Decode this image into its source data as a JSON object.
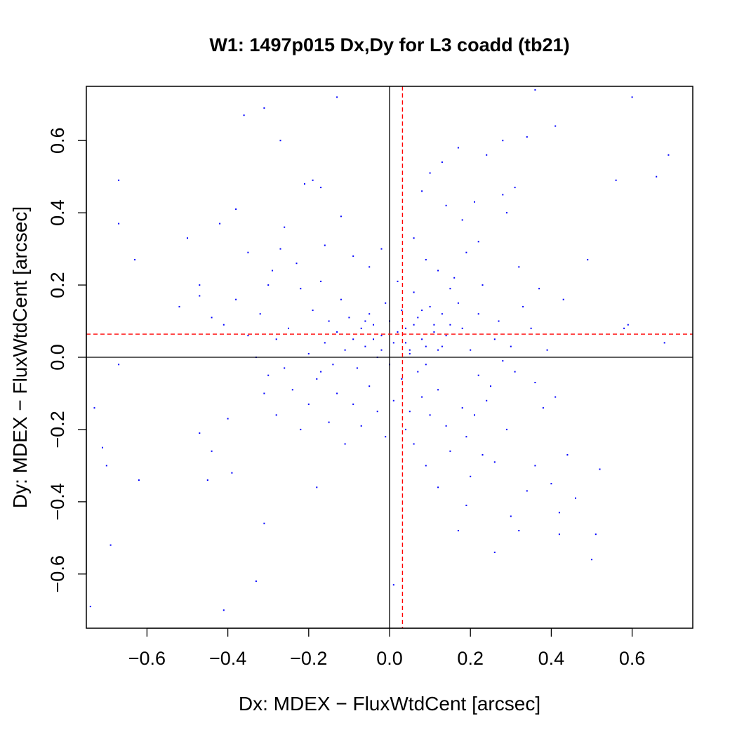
{
  "chart_data": {
    "type": "scatter",
    "title": "W1: 1497p015 Dx,Dy for L3 coadd (tb21)",
    "xlabel": "Dx: MDEX − FluxWtdCent [arcsec]",
    "ylabel": "Dy: MDEX − FluxWtdCent [arcsec]",
    "xlim": [
      -0.75,
      0.75
    ],
    "ylim": [
      -0.75,
      0.75
    ],
    "xticks": [
      "−0.6",
      "−0.4",
      "−0.2",
      "0.0",
      "0.2",
      "0.4",
      "0.6"
    ],
    "yticks": [
      "−0.6",
      "−0.4",
      "−0.2",
      "0.0",
      "0.2",
      "0.4",
      "0.6"
    ],
    "xtick_values": [
      -0.6,
      -0.4,
      -0.2,
      0.0,
      0.2,
      0.4,
      0.6
    ],
    "ytick_values": [
      -0.6,
      -0.4,
      -0.2,
      0.0,
      0.2,
      0.4,
      0.6
    ],
    "reference_lines": {
      "zero_x": 0.0,
      "zero_y": 0.0,
      "mean_x": 0.032,
      "mean_y": 0.064
    },
    "colors": {
      "points": "#0000ff",
      "mean_lines": "#ff0000",
      "zero_lines": "#000000"
    },
    "grid": false,
    "legend": "none",
    "points": [
      [
        -0.13,
        0.72
      ],
      [
        -0.36,
        0.67
      ],
      [
        -0.31,
        0.69
      ],
      [
        -0.27,
        0.6
      ],
      [
        -0.67,
        0.49
      ],
      [
        -0.67,
        0.37
      ],
      [
        -0.63,
        0.27
      ],
      [
        -0.5,
        0.33
      ],
      [
        -0.42,
        0.37
      ],
      [
        -0.38,
        0.41
      ],
      [
        -0.21,
        0.48
      ],
      [
        -0.19,
        0.49
      ],
      [
        -0.17,
        0.47
      ],
      [
        -0.12,
        0.39
      ],
      [
        -0.35,
        0.29
      ],
      [
        -0.3,
        0.2
      ],
      [
        -0.26,
        0.36
      ],
      [
        -0.27,
        0.3
      ],
      [
        -0.47,
        0.2
      ],
      [
        -0.47,
        0.17
      ],
      [
        -0.52,
        0.14
      ],
      [
        -0.41,
        0.09
      ],
      [
        -0.44,
        0.11
      ],
      [
        -0.67,
        -0.02
      ],
      [
        -0.73,
        -0.14
      ],
      [
        -0.71,
        -0.25
      ],
      [
        -0.7,
        -0.3
      ],
      [
        -0.62,
        -0.34
      ],
      [
        -0.69,
        -0.52
      ],
      [
        -0.74,
        -0.69
      ],
      [
        -0.47,
        -0.21
      ],
      [
        -0.44,
        -0.26
      ],
      [
        -0.4,
        -0.17
      ],
      [
        -0.39,
        -0.32
      ],
      [
        -0.45,
        -0.34
      ],
      [
        -0.31,
        -0.46
      ],
      [
        -0.33,
        -0.62
      ],
      [
        -0.41,
        -0.7
      ],
      [
        -0.18,
        -0.36
      ],
      [
        0.01,
        -0.63
      ],
      [
        0.24,
        0.56
      ],
      [
        0.28,
        0.6
      ],
      [
        0.31,
        0.47
      ],
      [
        0.34,
        0.61
      ],
      [
        0.36,
        0.74
      ],
      [
        0.41,
        0.64
      ],
      [
        0.6,
        0.72
      ],
      [
        0.69,
        0.56
      ],
      [
        0.56,
        0.49
      ],
      [
        0.66,
        0.5
      ],
      [
        0.17,
        0.58
      ],
      [
        0.13,
        0.54
      ],
      [
        0.1,
        0.51
      ],
      [
        0.08,
        0.46
      ],
      [
        0.21,
        0.43
      ],
      [
        0.28,
        0.45
      ],
      [
        0.29,
        0.4
      ],
      [
        0.18,
        0.38
      ],
      [
        0.14,
        0.42
      ],
      [
        0.22,
        0.32
      ],
      [
        0.32,
        0.25
      ],
      [
        0.37,
        0.19
      ],
      [
        0.43,
        0.16
      ],
      [
        0.49,
        0.27
      ],
      [
        0.59,
        0.09
      ],
      [
        0.68,
        0.04
      ],
      [
        0.58,
        0.08
      ],
      [
        0.39,
        0.02
      ],
      [
        0.31,
        -0.04
      ],
      [
        0.36,
        -0.07
      ],
      [
        0.41,
        -0.11
      ],
      [
        0.44,
        -0.27
      ],
      [
        0.46,
        -0.39
      ],
      [
        0.42,
        -0.43
      ],
      [
        0.4,
        -0.35
      ],
      [
        0.36,
        -0.3
      ],
      [
        0.34,
        -0.37
      ],
      [
        0.32,
        -0.48
      ],
      [
        0.3,
        -0.44
      ],
      [
        0.26,
        -0.29
      ],
      [
        0.26,
        -0.54
      ],
      [
        0.19,
        -0.41
      ],
      [
        0.17,
        -0.48
      ],
      [
        0.51,
        -0.49
      ],
      [
        0.5,
        -0.56
      ],
      [
        0.52,
        -0.31
      ],
      [
        0.42,
        -0.49
      ],
      [
        0.09,
        -0.3
      ],
      [
        0.05,
        -0.15
      ],
      [
        0.04,
        -0.2
      ],
      [
        0.22,
        -0.05
      ],
      [
        0.24,
        -0.12
      ],
      [
        0.21,
        -0.16
      ],
      [
        0.19,
        -0.22
      ],
      [
        0.15,
        -0.26
      ],
      [
        0.28,
        -0.01
      ],
      [
        0.26,
        0.05
      ],
      [
        0.22,
        0.12
      ],
      [
        0.2,
        0.02
      ],
      [
        0.18,
        0.08
      ],
      [
        0.17,
        0.15
      ],
      [
        0.16,
        0.22
      ],
      [
        0.14,
        0.06
      ],
      [
        0.13,
        0.12
      ],
      [
        0.12,
        0.02
      ],
      [
        0.11,
        0.09
      ],
      [
        0.1,
        0.14
      ],
      [
        0.09,
        -0.02
      ],
      [
        0.08,
        0.05
      ],
      [
        0.07,
        0.11
      ],
      [
        0.06,
        0.18
      ],
      [
        0.05,
        0.02
      ],
      [
        0.04,
        0.08
      ],
      [
        0.03,
        0.13
      ],
      [
        0.02,
        0.21
      ],
      [
        0.01,
        0.04
      ],
      [
        0.0,
        0.1
      ],
      [
        -0.01,
        0.15
      ],
      [
        -0.02,
        0.06
      ],
      [
        -0.03,
        0.0
      ],
      [
        -0.04,
        0.09
      ],
      [
        -0.05,
        0.12
      ],
      [
        -0.06,
        0.03
      ],
      [
        -0.07,
        0.08
      ],
      [
        -0.08,
        -0.03
      ],
      [
        -0.09,
        0.05
      ],
      [
        -0.1,
        0.11
      ],
      [
        -0.11,
        0.02
      ],
      [
        -0.12,
        0.16
      ],
      [
        -0.13,
        0.07
      ],
      [
        -0.14,
        -0.02
      ],
      [
        -0.15,
        0.1
      ],
      [
        -0.16,
        0.04
      ],
      [
        -0.17,
        0.21
      ],
      [
        -0.18,
        -0.06
      ],
      [
        -0.19,
        0.13
      ],
      [
        -0.2,
        0.01
      ],
      [
        -0.22,
        0.19
      ],
      [
        -0.24,
        -0.09
      ],
      [
        -0.25,
        0.08
      ],
      [
        -0.28,
        0.05
      ],
      [
        -0.3,
        -0.05
      ],
      [
        -0.33,
        0.0
      ],
      [
        -0.32,
        0.12
      ],
      [
        -0.29,
        0.24
      ],
      [
        -0.23,
        0.26
      ],
      [
        -0.16,
        0.31
      ],
      [
        -0.09,
        0.28
      ],
      [
        -0.05,
        0.25
      ],
      [
        -0.02,
        0.3
      ],
      [
        0.06,
        0.33
      ],
      [
        0.09,
        0.27
      ],
      [
        0.12,
        0.24
      ],
      [
        0.15,
        0.19
      ],
      [
        0.19,
        0.29
      ],
      [
        0.23,
        0.2
      ],
      [
        0.27,
        0.1
      ],
      [
        0.3,
        0.03
      ],
      [
        0.25,
        -0.08
      ],
      [
        0.18,
        -0.14
      ],
      [
        0.14,
        -0.19
      ],
      [
        0.12,
        -0.09
      ],
      [
        0.1,
        -0.16
      ],
      [
        0.08,
        -0.11
      ],
      [
        0.06,
        -0.24
      ],
      [
        0.03,
        -0.06
      ],
      [
        0.01,
        -0.12
      ],
      [
        -0.01,
        -0.22
      ],
      [
        -0.03,
        -0.15
      ],
      [
        -0.05,
        -0.08
      ],
      [
        -0.07,
        -0.19
      ],
      [
        -0.09,
        -0.13
      ],
      [
        -0.11,
        -0.24
      ],
      [
        -0.13,
        -0.1
      ],
      [
        -0.15,
        -0.18
      ],
      [
        -0.17,
        -0.04
      ],
      [
        -0.2,
        -0.13
      ],
      [
        -0.22,
        -0.2
      ],
      [
        -0.26,
        -0.03
      ],
      [
        -0.28,
        -0.16
      ],
      [
        -0.31,
        -0.1
      ],
      [
        -0.35,
        0.06
      ],
      [
        -0.38,
        0.16
      ],
      [
        0.33,
        0.14
      ],
      [
        0.35,
        0.08
      ],
      [
        0.38,
        -0.14
      ],
      [
        0.29,
        -0.2
      ],
      [
        0.23,
        -0.27
      ],
      [
        0.2,
        -0.33
      ],
      [
        0.12,
        -0.36
      ],
      [
        0.05,
        0.01
      ],
      [
        0.07,
        -0.04
      ],
      [
        0.09,
        0.03
      ],
      [
        0.11,
        0.07
      ],
      [
        0.13,
        0.03
      ],
      [
        0.15,
        0.09
      ],
      [
        0.02,
        0.07
      ],
      [
        -0.02,
        0.02
      ],
      [
        -0.04,
        0.05
      ],
      [
        -0.06,
        0.1
      ],
      [
        0.0,
        -0.02
      ],
      [
        0.04,
        0.04
      ],
      [
        0.06,
        0.09
      ],
      [
        0.08,
        0.13
      ]
    ]
  }
}
